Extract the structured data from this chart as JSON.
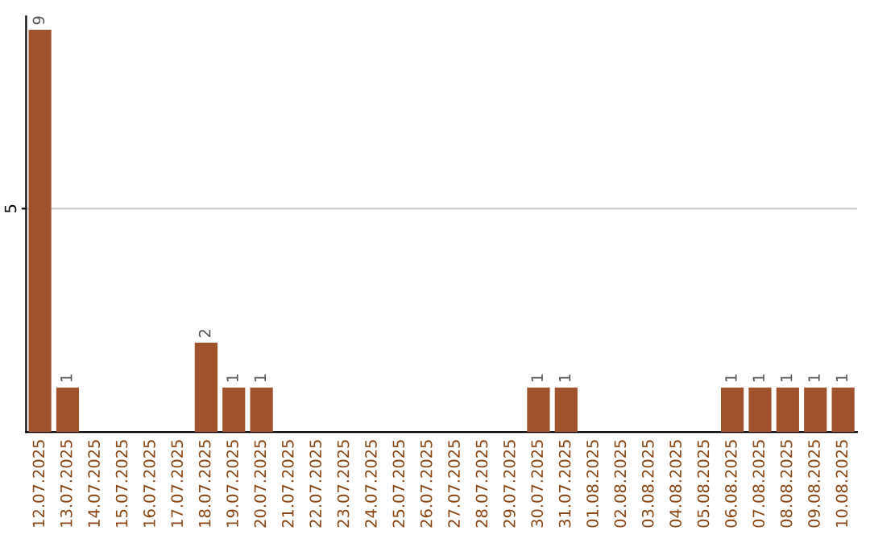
{
  "chart_data": {
    "type": "bar",
    "categories": [
      "12.07.2025",
      "13.07.2025",
      "14.07.2025",
      "15.07.2025",
      "16.07.2025",
      "17.07.2025",
      "18.07.2025",
      "19.07.2025",
      "20.07.2025",
      "21.07.2025",
      "22.07.2025",
      "23.07.2025",
      "24.07.2025",
      "25.07.2025",
      "26.07.2025",
      "27.07.2025",
      "28.07.2025",
      "29.07.2025",
      "30.07.2025",
      "31.07.2025",
      "01.08.2025",
      "02.08.2025",
      "03.08.2025",
      "04.08.2025",
      "05.08.2025",
      "06.08.2025",
      "07.08.2025",
      "08.08.2025",
      "09.08.2025",
      "10.08.2025"
    ],
    "values": [
      9,
      1,
      0,
      0,
      0,
      0,
      2,
      1,
      1,
      0,
      0,
      0,
      0,
      0,
      0,
      0,
      0,
      0,
      1,
      1,
      0,
      0,
      0,
      0,
      0,
      1,
      1,
      1,
      1,
      1
    ],
    "value_labels": [
      "9",
      "1",
      null,
      null,
      null,
      null,
      "2",
      "1",
      "1",
      null,
      null,
      null,
      null,
      null,
      null,
      null,
      null,
      null,
      "1",
      "1",
      null,
      null,
      null,
      null,
      null,
      "1",
      "1",
      "1",
      "1",
      "1"
    ],
    "color": "#a0522d",
    "ylim": [
      0,
      9.3
    ],
    "yticks": [
      5
    ],
    "grid": "y"
  }
}
